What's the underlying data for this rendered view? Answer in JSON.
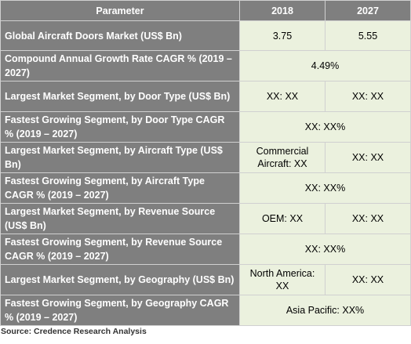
{
  "table": {
    "header": [
      "Parameter",
      "2018",
      "2027"
    ],
    "rows": [
      {
        "label": "Global Aircraft Doors Market (US$ Bn)",
        "values": [
          "3.75",
          "5.55"
        ]
      },
      {
        "label": "Compound Annual Growth Rate CAGR % (2019 – 2027)",
        "values": [
          "4.49%"
        ]
      },
      {
        "label": "Largest Market Segment, by Door Type (US$ Bn)",
        "values": [
          "XX: XX",
          "XX: XX"
        ]
      },
      {
        "label": "Fastest Growing Segment, by Door Type CAGR % (2019 – 2027)",
        "values": [
          "XX: XX%"
        ]
      },
      {
        "label": "Largest Market Segment, by Aircraft Type (US$ Bn)",
        "values": [
          "Commercial Aircraft: XX",
          "XX: XX"
        ]
      },
      {
        "label": "Fastest Growing Segment, by Aircraft Type CAGR % (2019 – 2027)",
        "values": [
          "XX: XX%"
        ]
      },
      {
        "label": "Largest Market Segment, by Revenue Source (US$ Bn)",
        "values": [
          "OEM: XX",
          "XX: XX"
        ]
      },
      {
        "label": "Fastest Growing Segment, by Revenue Source CAGR % (2019 – 2027)",
        "values": [
          "XX: XX%"
        ]
      },
      {
        "label": "Largest Market Segment, by Geography (US$ Bn)",
        "values": [
          "North America: XX",
          "XX: XX"
        ]
      },
      {
        "label": "Fastest Growing Segment, by Geography CAGR % (2019 – 2027)",
        "values": [
          "Asia Pacific: XX%"
        ]
      }
    ]
  },
  "source": "Source: Credence Research Analysis"
}
